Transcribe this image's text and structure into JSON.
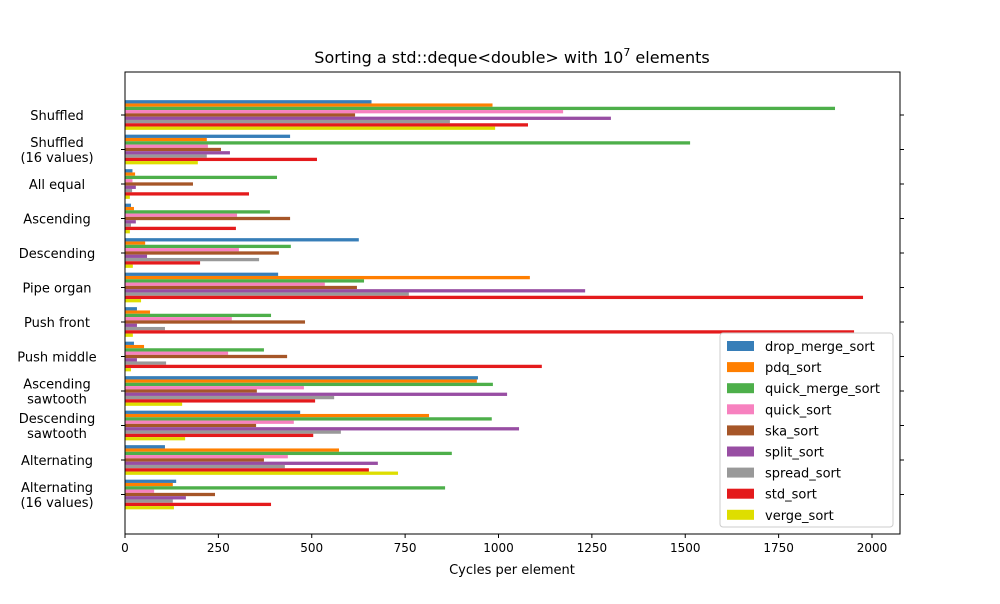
{
  "chart_data": {
    "type": "bar",
    "orientation": "horizontal",
    "title": "Sorting a std::deque<double> with 10",
    "title_exponent": "7",
    "title_suffix": " elements",
    "xlabel": "Cycles per element",
    "ylabel": "",
    "xlim": [
      0,
      2075
    ],
    "xticks": [
      0,
      250,
      500,
      750,
      1000,
      1250,
      1500,
      1750,
      2000
    ],
    "grid": false,
    "legend_position": "lower-right",
    "categories": [
      [
        "Shuffled"
      ],
      [
        "Shuffled",
        "(16 values)"
      ],
      [
        "All equal"
      ],
      [
        "Ascending"
      ],
      [
        "Descending"
      ],
      [
        "Pipe organ"
      ],
      [
        "Push front"
      ],
      [
        "Push middle"
      ],
      [
        "Ascending",
        "sawtooth"
      ],
      [
        "Descending",
        "sawtooth"
      ],
      [
        "Alternating"
      ],
      [
        "Alternating",
        "(16 values)"
      ]
    ],
    "series": [
      {
        "name": "drop_merge_sort",
        "color": "#377eb8",
        "values": [
          660,
          442,
          20,
          16,
          626,
          410,
          32,
          24,
          945,
          469,
          107,
          137
        ]
      },
      {
        "name": "pdq_sort",
        "color": "#ff7f00",
        "values": [
          984,
          219,
          27,
          24,
          54,
          1084,
          67,
          51,
          942,
          814,
          573,
          128
        ]
      },
      {
        "name": "quick_merge_sort",
        "color": "#4daf4a",
        "values": [
          1901,
          1513,
          407,
          388,
          444,
          640,
          391,
          372,
          985,
          982,
          875,
          857
        ]
      },
      {
        "name": "quick_sort",
        "color": "#f781bf",
        "values": [
          1173,
          222,
          20,
          300,
          305,
          535,
          286,
          276,
          479,
          452,
          436,
          78
        ]
      },
      {
        "name": "ska_sort",
        "color": "#a65628",
        "values": [
          616,
          257,
          182,
          442,
          412,
          621,
          482,
          434,
          353,
          351,
          372,
          241
        ]
      },
      {
        "name": "split_sort",
        "color": "#984ea3",
        "values": [
          1301,
          281,
          29,
          29,
          59,
          1232,
          32,
          32,
          1023,
          1055,
          677,
          163
        ]
      },
      {
        "name": "spread_sort",
        "color": "#999999",
        "values": [
          870,
          219,
          19,
          16,
          359,
          760,
          107,
          110,
          560,
          578,
          428,
          128
        ]
      },
      {
        "name": "std_sort",
        "color": "#e41a1c",
        "values": [
          1079,
          514,
          332,
          297,
          201,
          1976,
          1952,
          1116,
          509,
          504,
          653,
          391
        ]
      },
      {
        "name": "verge_sort",
        "color": "#dede00",
        "values": [
          991,
          195,
          13,
          13,
          21,
          43,
          21,
          16,
          153,
          161,
          731,
          131
        ]
      }
    ]
  }
}
